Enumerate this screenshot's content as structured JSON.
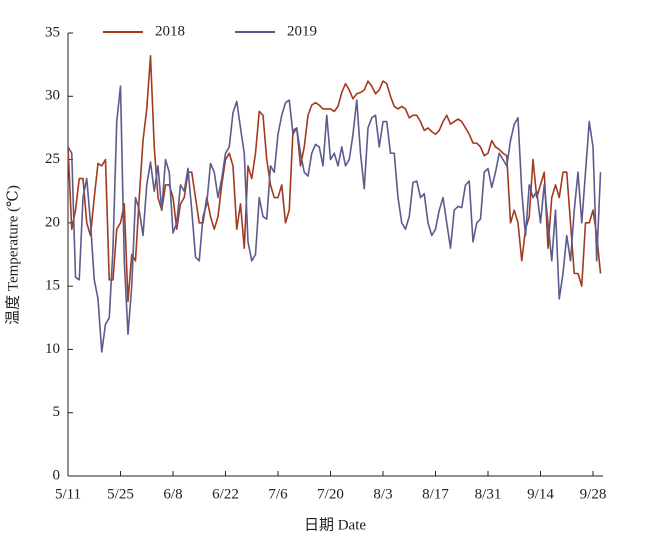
{
  "chart_data": {
    "type": "line",
    "xlabel": "日期 Date",
    "ylabel": "温度 Temperature (℃)",
    "categories": [
      "5/11",
      null,
      null,
      null,
      null,
      null,
      null,
      null,
      null,
      null,
      null,
      null,
      null,
      null,
      "5/25",
      null,
      null,
      null,
      null,
      null,
      null,
      null,
      null,
      null,
      null,
      null,
      null,
      null,
      "6/8",
      null,
      null,
      null,
      null,
      null,
      null,
      null,
      null,
      null,
      null,
      null,
      null,
      null,
      "6/22",
      null,
      null,
      null,
      null,
      null,
      null,
      null,
      null,
      null,
      null,
      null,
      null,
      null,
      "7/6",
      null,
      null,
      null,
      null,
      null,
      null,
      null,
      null,
      null,
      null,
      null,
      null,
      null,
      "7/20",
      null,
      null,
      null,
      null,
      null,
      null,
      null,
      null,
      null,
      null,
      null,
      null,
      null,
      "8/3",
      null,
      null,
      null,
      null,
      null,
      null,
      null,
      null,
      null,
      null,
      null,
      null,
      null,
      "8/17",
      null,
      null,
      null,
      null,
      null,
      null,
      null,
      null,
      null,
      null,
      null,
      null,
      null,
      "8/31",
      null,
      null,
      null,
      null,
      null,
      null,
      null,
      null,
      null,
      null,
      null,
      null,
      null,
      "9/14",
      null,
      null,
      null,
      null,
      null,
      null,
      null,
      null,
      null,
      null,
      null,
      null,
      null,
      "9/28",
      null,
      null
    ],
    "series": [
      {
        "name": "2018",
        "color": "#a3391f",
        "values": [
          26,
          19.5,
          21,
          23.5,
          23.5,
          20,
          19,
          22,
          24.7,
          24.5,
          25,
          15.5,
          15.5,
          19.5,
          20,
          21.5,
          13.8,
          17.5,
          17,
          22,
          26.5,
          29,
          33.2,
          26,
          22,
          21,
          23,
          23,
          22,
          19.5,
          21.5,
          22,
          24,
          24,
          22,
          20,
          20,
          22,
          20.5,
          19.5,
          20.5,
          23,
          25,
          25.5,
          24.5,
          19.5,
          21.5,
          18,
          24.5,
          23.5,
          25.5,
          28.8,
          28.5,
          25,
          23,
          22,
          22,
          23,
          20,
          21,
          27.3,
          27.5,
          24.5,
          26,
          28.5,
          29.3,
          29.5,
          29.3,
          29,
          29,
          29,
          28.8,
          29.2,
          30.3,
          31,
          30.5,
          29.8,
          30.2,
          30.3,
          30.5,
          31.2,
          30.8,
          30.2,
          30.5,
          31.2,
          31,
          30,
          29.2,
          29,
          29.2,
          29,
          28.3,
          28.5,
          28.5,
          28,
          27.3,
          27.5,
          27.2,
          27,
          27.3,
          28,
          28.5,
          27.8,
          28,
          28.2,
          28,
          27.5,
          27,
          26.3,
          26.3,
          26,
          25.3,
          25.5,
          26.5,
          26,
          25.8,
          25.5,
          25.3,
          20,
          21,
          20,
          17,
          19.5,
          20.5,
          25,
          22,
          23,
          24,
          18,
          22,
          23,
          22,
          24,
          24,
          20,
          16,
          16,
          15,
          20,
          20,
          21,
          19,
          16
        ]
      },
      {
        "name": "2019",
        "color": "#5c5b8e",
        "values": [
          26,
          25.5,
          15.7,
          15.5,
          22,
          23.5,
          20,
          15.5,
          14,
          9.8,
          12,
          12.5,
          18,
          28,
          30.8,
          17,
          11.2,
          15,
          22,
          21,
          19,
          23,
          24.8,
          22.5,
          24.5,
          21,
          25,
          24,
          19.2,
          20,
          23,
          22.5,
          24.3,
          21,
          17.3,
          17,
          20.5,
          21.5,
          24.7,
          24,
          22,
          23.5,
          25.5,
          26,
          28.7,
          29.6,
          27.5,
          25.5,
          18.5,
          17,
          17.5,
          22,
          20.5,
          20.3,
          24.5,
          24,
          27,
          28.5,
          29.5,
          29.7,
          27,
          27.5,
          25.5,
          24,
          23.7,
          25.5,
          26.2,
          26,
          24.5,
          28.5,
          25,
          25.5,
          24.5,
          26,
          24.5,
          25,
          27,
          29.7,
          25.5,
          22.7,
          27.5,
          28.3,
          28.5,
          26,
          28,
          28,
          25.5,
          25.5,
          22,
          20,
          19.5,
          20.5,
          23.2,
          23.3,
          22,
          22.3,
          20,
          19,
          19.5,
          21,
          22,
          20,
          18,
          21,
          21.3,
          21.2,
          23,
          23.3,
          18.5,
          20,
          20.3,
          24,
          24.3,
          22.8,
          24,
          25.5,
          25,
          24.5,
          26.5,
          27.8,
          28.3,
          22.5,
          19,
          23,
          22,
          22.5,
          20,
          23,
          20,
          17,
          21,
          14,
          16,
          19,
          17,
          21,
          24,
          20,
          24,
          28,
          26,
          17,
          24
        ]
      }
    ],
    "ylim": [
      0,
      35
    ],
    "yticks": [
      0,
      5,
      10,
      15,
      20,
      25,
      30,
      35
    ]
  }
}
